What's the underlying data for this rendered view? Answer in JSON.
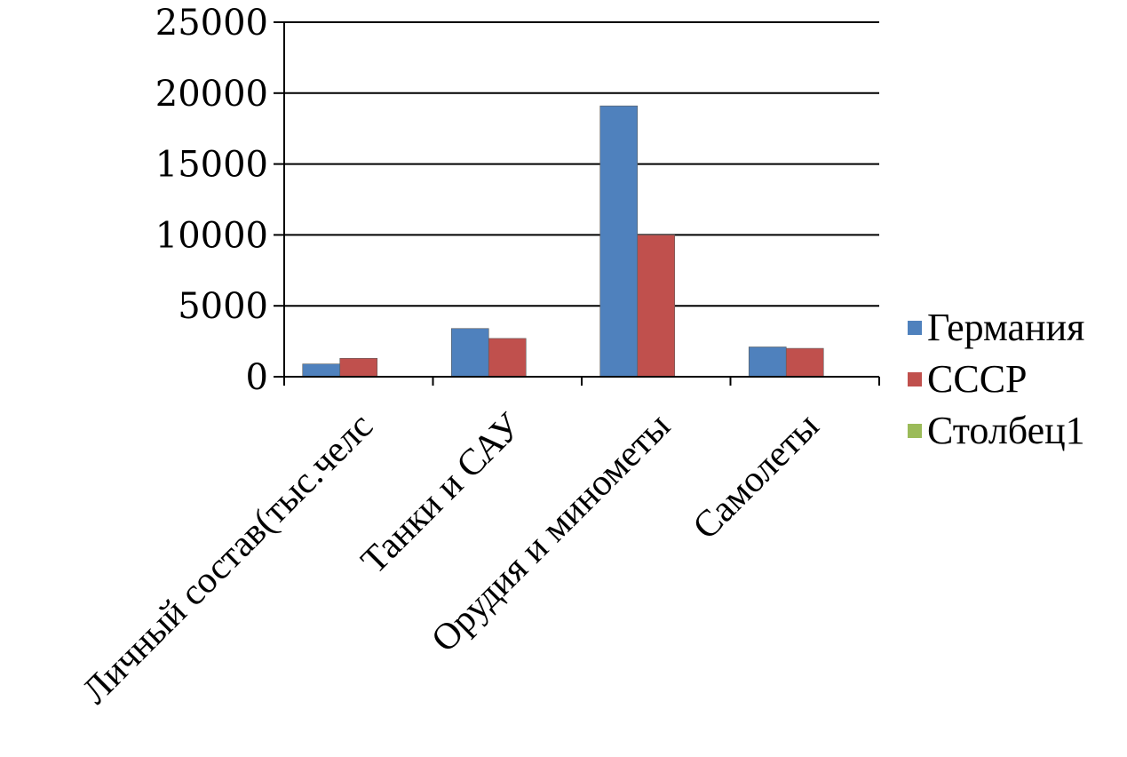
{
  "chart_data": {
    "type": "bar",
    "title": "",
    "xlabel": "",
    "ylabel": "",
    "categories": [
      "Личный состав(тыс.челс",
      "Танки и САУ",
      "Орудия и минометы",
      "Самолеты"
    ],
    "series": [
      {
        "name": "Германия",
        "color": "#4F81BD",
        "values": [
          900,
          3400,
          19100,
          2100
        ]
      },
      {
        "name": "СССР",
        "color": "#C0504D",
        "values": [
          1300,
          2700,
          10000,
          2000
        ]
      },
      {
        "name": "Столбец1",
        "color": "#9BBB59",
        "values": [
          null,
          null,
          null,
          null
        ]
      }
    ],
    "ylim": [
      0,
      25000
    ],
    "yticks": [
      0,
      5000,
      10000,
      15000,
      20000,
      25000
    ],
    "ytick_labels": [
      "0",
      "5000",
      "10000",
      "15000",
      "20000",
      "25000"
    ],
    "grid": true,
    "legend_position": "right"
  }
}
